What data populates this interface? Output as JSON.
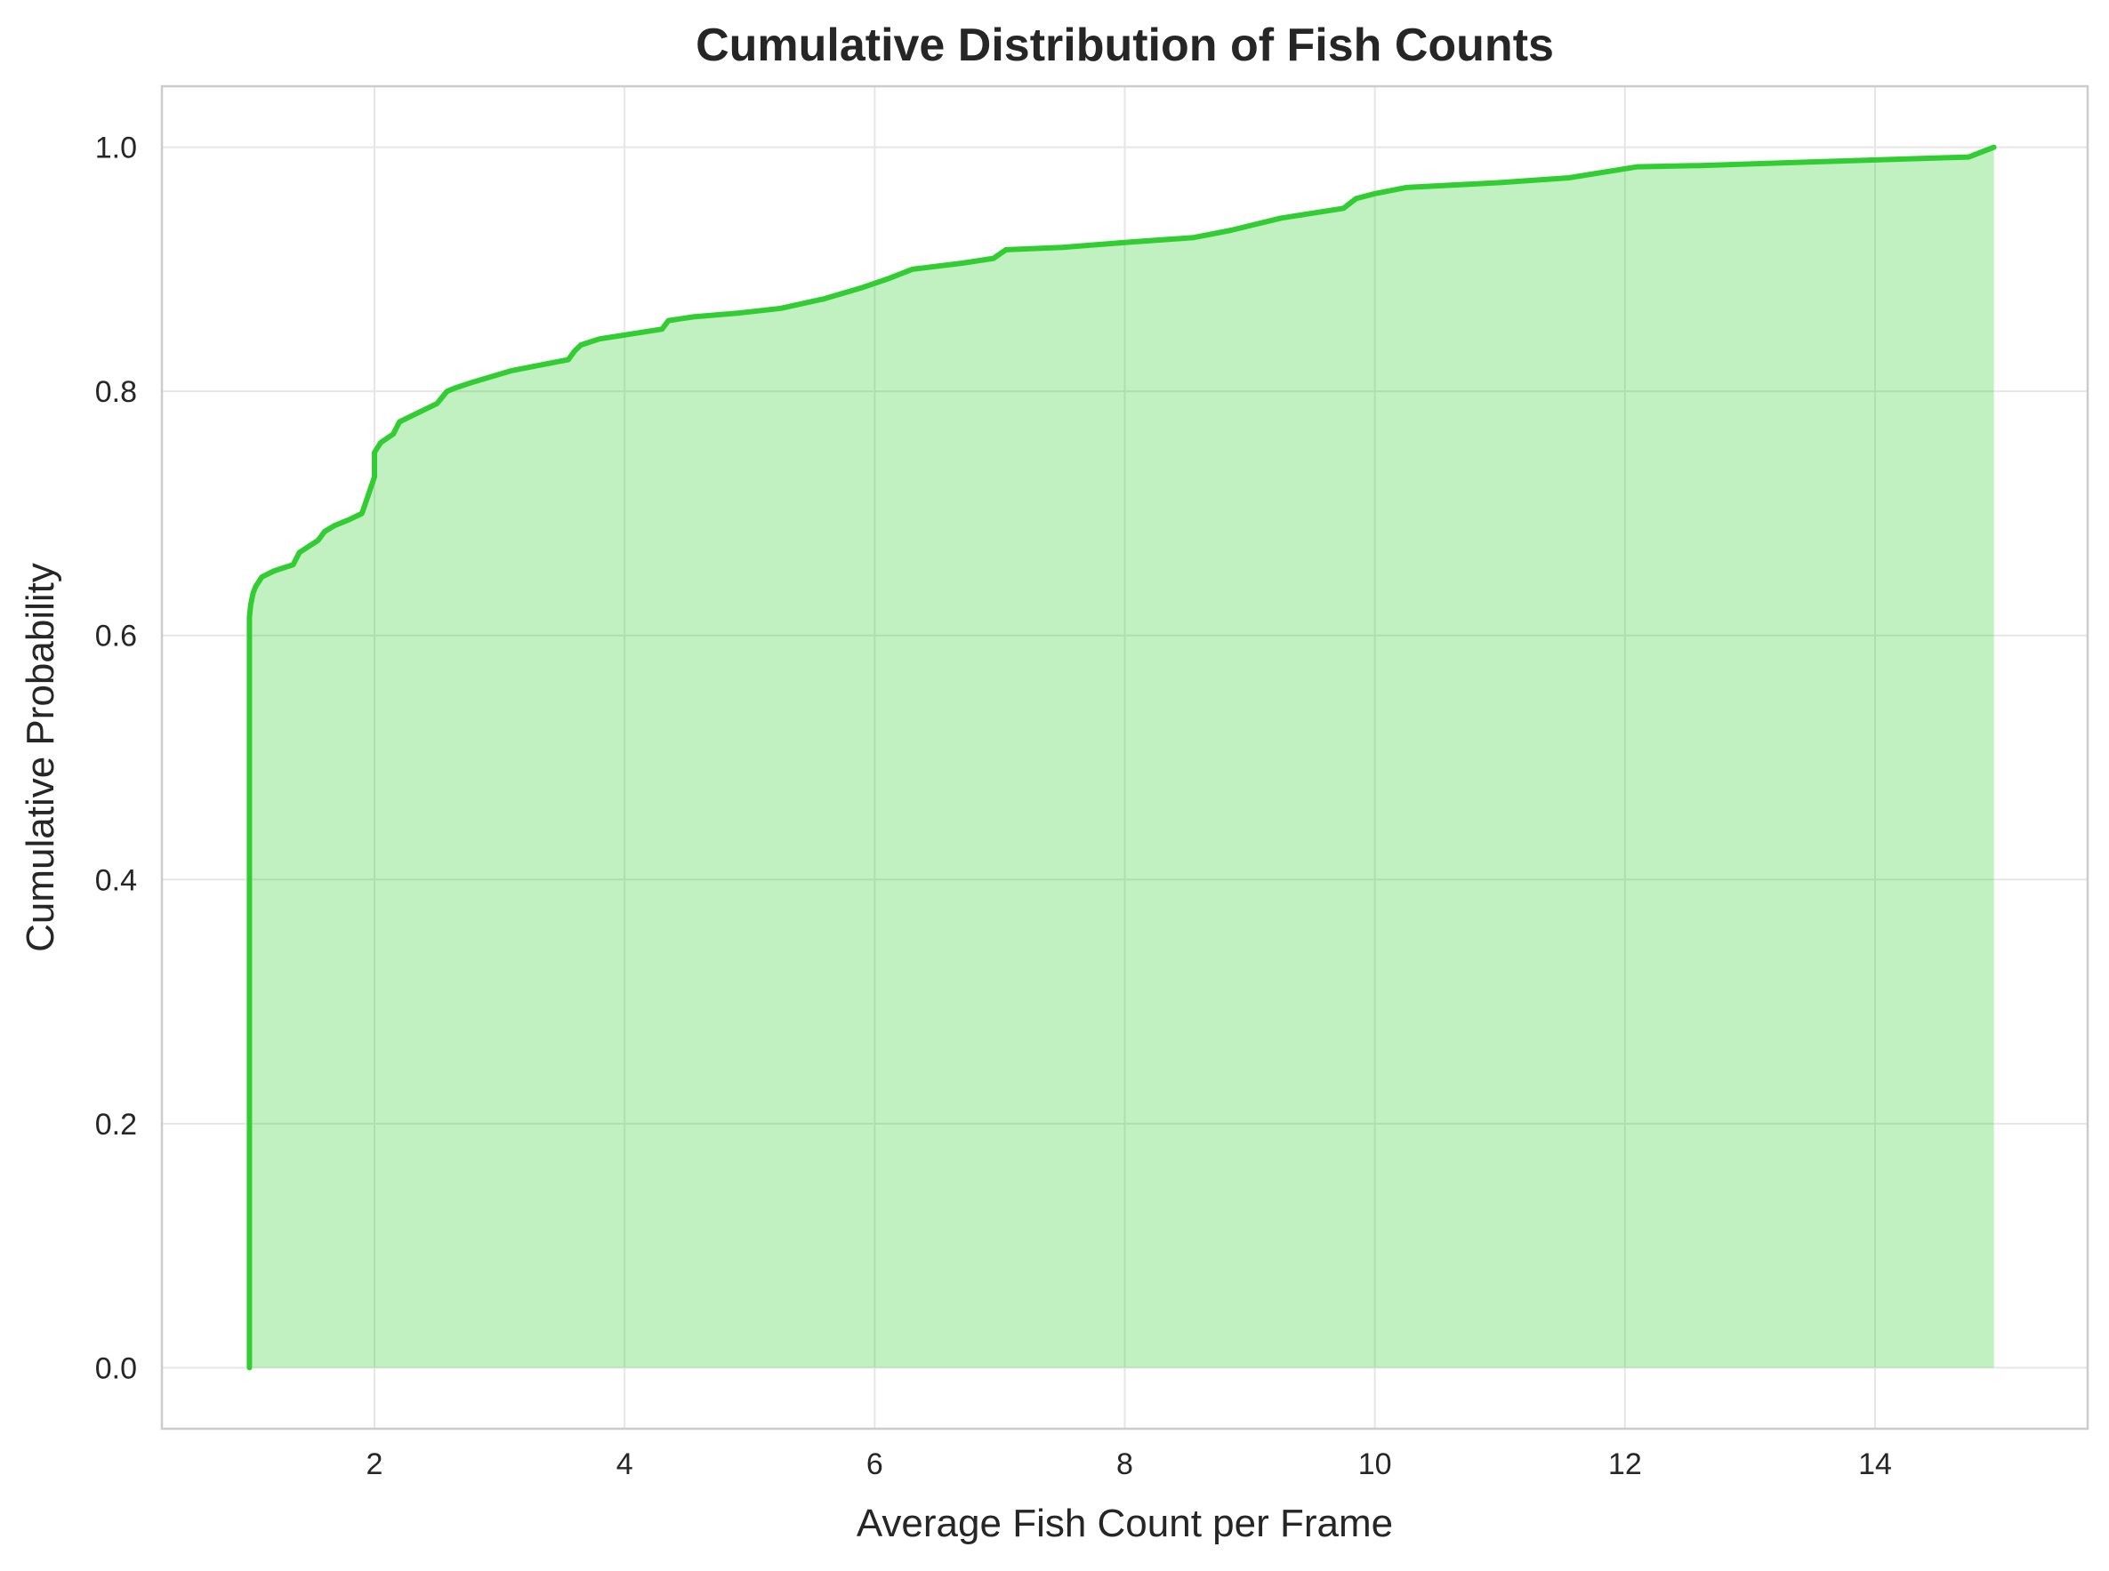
{
  "chart_data": {
    "type": "area",
    "title": "Cumulative Distribution of Fish Counts",
    "xlabel": "Average Fish Count per Frame",
    "ylabel": "Cumulative Probability",
    "xlim": [
      0.3,
      15.7
    ],
    "ylim": [
      -0.05,
      1.05
    ],
    "xticks": [
      2,
      4,
      6,
      8,
      10,
      12,
      14
    ],
    "xtick_labels": [
      "2",
      "4",
      "6",
      "8",
      "10",
      "12",
      "14"
    ],
    "yticks": [
      0.0,
      0.2,
      0.4,
      0.6,
      0.8,
      1.0
    ],
    "ytick_labels": [
      "0.0",
      "0.2",
      "0.4",
      "0.6",
      "0.8",
      "1.0"
    ],
    "grid": true,
    "legend": false,
    "colors": {
      "line": "#32cd32",
      "fill": "#32cd32",
      "fill_opacity": 0.3,
      "grid": "#e6e6e6",
      "frame": "#cccccc",
      "text": "#262626"
    },
    "series": [
      {
        "x": [
          1.0,
          1.0,
          1.01,
          1.03,
          1.05,
          1.1,
          1.2,
          1.35,
          1.4,
          1.55,
          1.6,
          1.68,
          1.8,
          1.9,
          1.95,
          2.0,
          2.0,
          2.05,
          2.15,
          2.2,
          2.3,
          2.5,
          2.58,
          2.65,
          2.8,
          3.1,
          3.55,
          3.6,
          3.65,
          3.8,
          4.05,
          4.3,
          4.35,
          4.55,
          4.9,
          5.25,
          5.6,
          5.9,
          6.1,
          6.3,
          6.7,
          6.95,
          7.05,
          7.5,
          8.0,
          8.55,
          8.85,
          9.25,
          9.75,
          9.85,
          10.0,
          10.25,
          11.0,
          11.55,
          12.1,
          12.6,
          13.5,
          14.75,
          14.95
        ],
        "y": [
          0.0,
          0.615,
          0.625,
          0.635,
          0.64,
          0.648,
          0.653,
          0.658,
          0.668,
          0.678,
          0.685,
          0.69,
          0.695,
          0.7,
          0.715,
          0.73,
          0.75,
          0.758,
          0.765,
          0.775,
          0.78,
          0.79,
          0.8,
          0.803,
          0.808,
          0.817,
          0.826,
          0.833,
          0.838,
          0.843,
          0.847,
          0.851,
          0.858,
          0.861,
          0.864,
          0.868,
          0.876,
          0.885,
          0.892,
          0.9,
          0.905,
          0.909,
          0.916,
          0.918,
          0.922,
          0.926,
          0.932,
          0.942,
          0.95,
          0.958,
          0.962,
          0.967,
          0.971,
          0.975,
          0.984,
          0.985,
          0.988,
          0.992,
          1.0
        ]
      }
    ]
  }
}
